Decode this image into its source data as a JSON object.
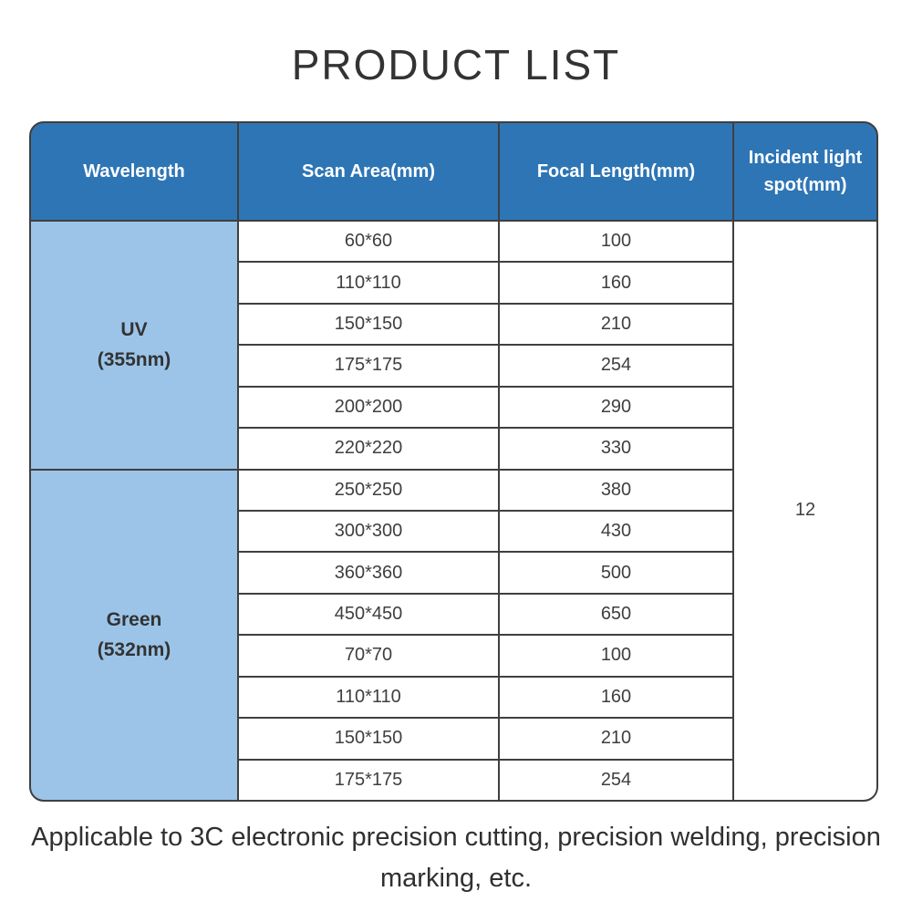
{
  "title": "PRODUCT LIST",
  "table": {
    "headers": [
      "Wavelength",
      "Scan Area(mm)",
      "Focal Length(mm)",
      "Incident light spot(mm)"
    ],
    "groups": [
      {
        "name": "UV",
        "nm": "(355nm)",
        "rows": [
          {
            "scan": "60*60",
            "focal": "100"
          },
          {
            "scan": "110*110",
            "focal": "160"
          },
          {
            "scan": "150*150",
            "focal": "210"
          },
          {
            "scan": "175*175",
            "focal": "254"
          },
          {
            "scan": "200*200",
            "focal": "290"
          },
          {
            "scan": "220*220",
            "focal": "330"
          }
        ]
      },
      {
        "name": "Green",
        "nm": "(532nm)",
        "rows": [
          {
            "scan": "250*250",
            "focal": "380"
          },
          {
            "scan": "300*300",
            "focal": "430"
          },
          {
            "scan": "360*360",
            "focal": "500"
          },
          {
            "scan": "450*450",
            "focal": "650"
          },
          {
            "scan": "70*70",
            "focal": "100"
          },
          {
            "scan": "110*110",
            "focal": "160"
          },
          {
            "scan": "150*150",
            "focal": "210"
          },
          {
            "scan": "175*175",
            "focal": "254"
          }
        ]
      }
    ],
    "incident_light_spot": "12"
  },
  "footer": "Applicable to 3C electronic precision cutting, precision welding, precision marking, etc.",
  "colors": {
    "header_bg": "#2e75b5",
    "header_text": "#ffffff",
    "wavelength_bg": "#9cc4e8",
    "grid_line": "#3f3f3f",
    "body_text": "#3f3f3f",
    "title_text": "#333333"
  }
}
